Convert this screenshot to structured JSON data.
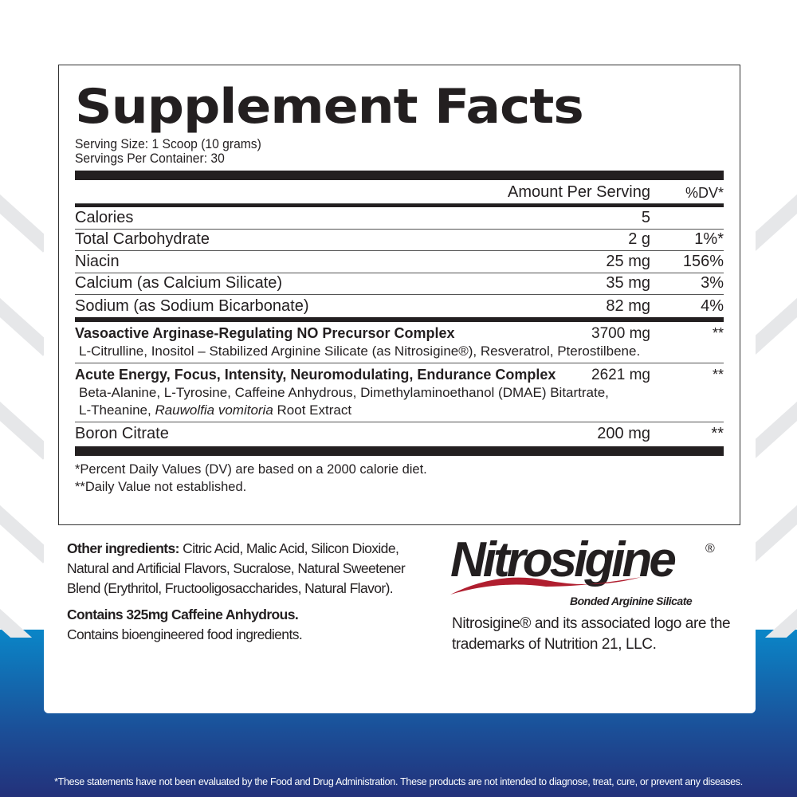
{
  "title": "Supplement Facts",
  "serving_size": "Serving Size: 1 Scoop (10 grams)",
  "servings_per_container": "Servings Per Container: 30",
  "header": {
    "amount": "Amount Per Serving",
    "dv": "%DV*"
  },
  "nutrients": [
    {
      "name": "Calories",
      "amount": "5",
      "dv": ""
    },
    {
      "name": "Total Carbohydrate",
      "amount": "2 g",
      "dv": "1%*"
    },
    {
      "name": "Niacin",
      "amount": "25 mg",
      "dv": "156%"
    },
    {
      "name": "Calcium (as Calcium Silicate)",
      "amount": "35 mg",
      "dv": "3%"
    },
    {
      "name": "Sodium (as Sodium Bicarbonate)",
      "amount": "82 mg",
      "dv": "4%"
    }
  ],
  "complexes": [
    {
      "name": "Vasoactive Arginase-Regulating NO Precursor Complex",
      "amount": "3700 mg",
      "dv": "**",
      "ingredients": "L-Citrulline, Inositol – Stabilized Arginine Silicate (as Nitrosigine®), Resveratrol, Pterostilbene."
    },
    {
      "name": "Acute Energy, Focus, Intensity, Neuromodulating, Endurance Complex",
      "amount": "2621 mg",
      "dv": "**",
      "ingredients_1": "Beta-Alanine, L-Tyrosine, Caffeine Anhydrous, Dimethylaminoethanol (DMAE) Bitartrate,",
      "ingredients_2a": "L-Theanine, ",
      "ingredients_2_italic": "Rauwolfia vomitoria",
      "ingredients_2b": " Root Extract"
    }
  ],
  "boron": {
    "name": "Boron Citrate",
    "amount": "200 mg",
    "dv": "**"
  },
  "footnotes": [
    "*Percent Daily Values (DV) are based on a 2000 calorie diet.",
    "**Daily Value not established."
  ],
  "other": {
    "label": "Other ingredients:",
    "text": " Citric Acid, Malic Acid, Silicon Dioxide, Natural and Artificial Flavors, Sucralose, Natural Sweetener Blend (Erythritol, Fructooligosaccharides, Natural Flavor).",
    "caffeine": "Contains 325mg Caffeine Anhydrous.",
    "bio": "Contains bioengineered food ingredients."
  },
  "logo": {
    "name": "Nitrosigine",
    "reg": "®",
    "tagline": "Bonded Arginine Silicate",
    "accent": "#b01e2f"
  },
  "trademark": [
    "Nitrosigine® and its associated logo are the",
    "trademarks of Nutrition 21, LLC."
  ],
  "disclaimer": "*These statements have not been evaluated by the Food and Drug Administration. These products are not intended to diagnose, treat, cure, or prevent any diseases."
}
